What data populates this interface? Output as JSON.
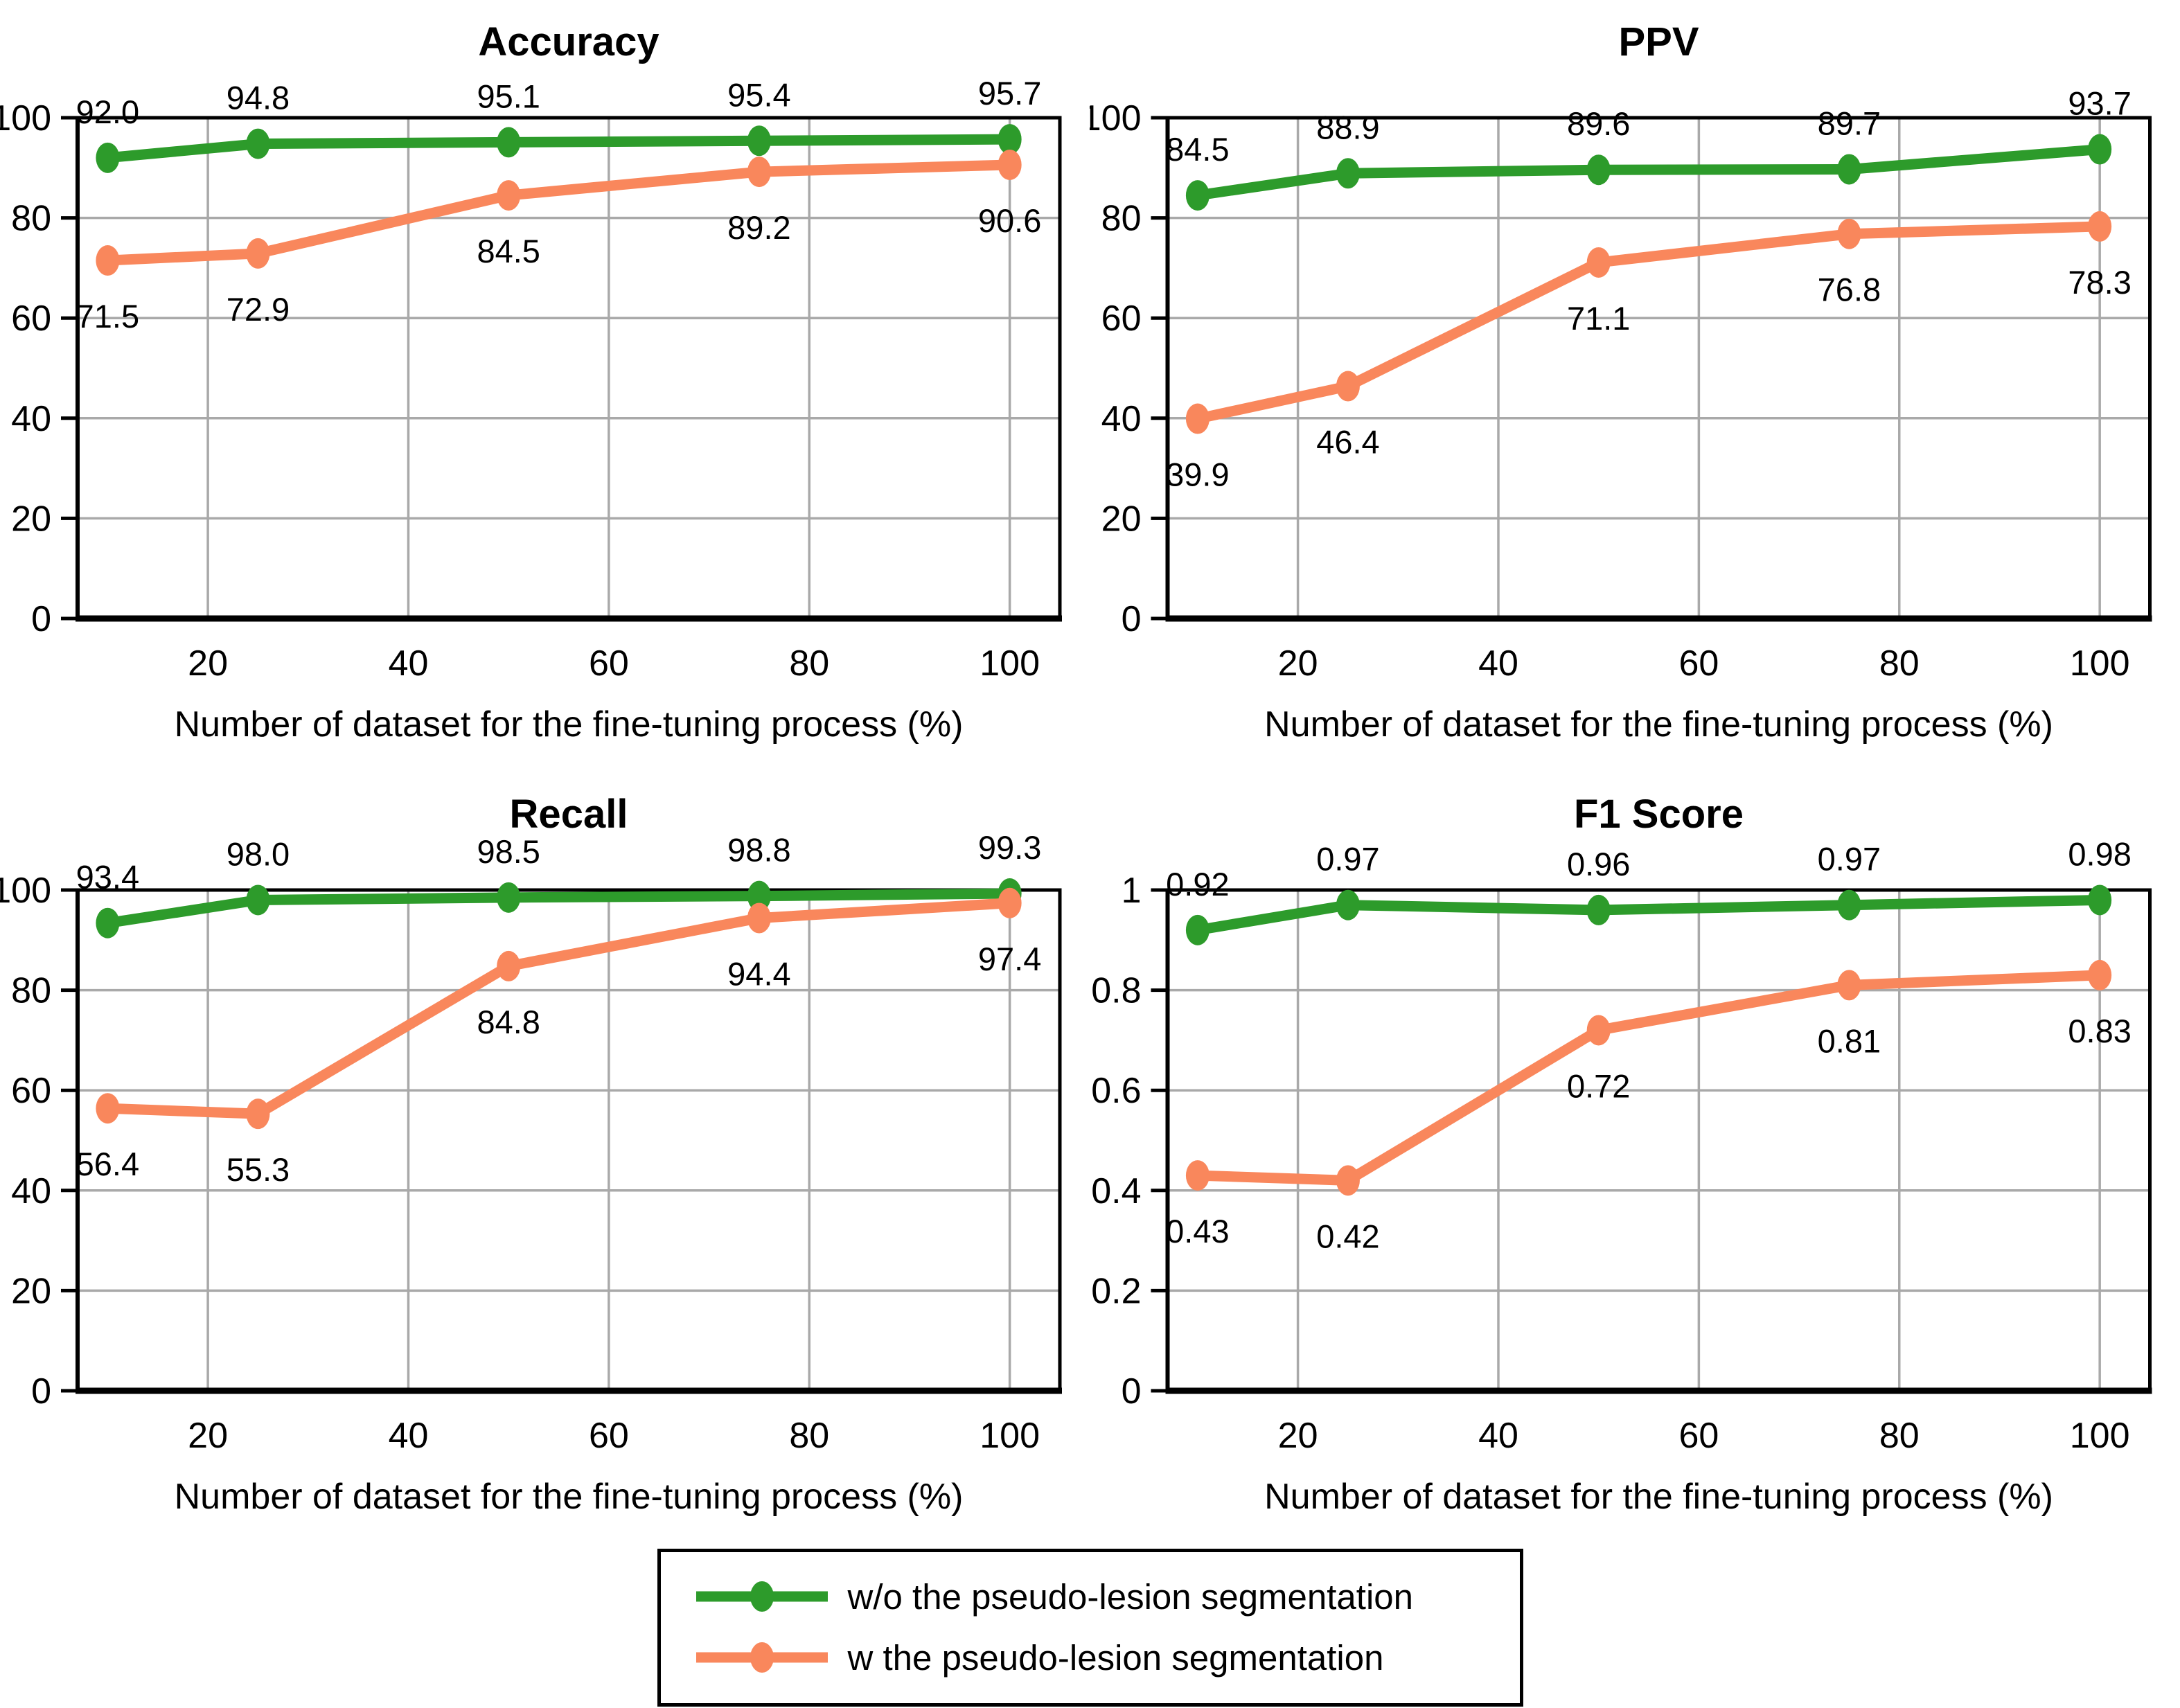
{
  "colors": {
    "green": "#2D9B2B",
    "orange": "#F9875C",
    "grid": "#A9A9A9",
    "axis": "#000000",
    "background": "#FFFFFF"
  },
  "xlabel": "Number of dataset for the fine-tuning process (%)",
  "legend": {
    "items": [
      {
        "label": "w/o the pseudo-lesion segmentation",
        "color_key": "green"
      },
      {
        "label": "w the pseudo-lesion segmentation",
        "color_key": "orange"
      }
    ]
  },
  "chart_data": [
    {
      "type": "line",
      "title": "Accuracy",
      "xlabel": "Number of dataset for the fine-tuning process (%)",
      "x": [
        10,
        25,
        50,
        75,
        100
      ],
      "xlim": [
        7,
        105
      ],
      "xticks": [
        20,
        40,
        60,
        80,
        100
      ],
      "xtick_labels": [
        "20",
        "40",
        "60",
        "80",
        "100"
      ],
      "ylim": [
        0,
        100
      ],
      "yticks": [
        0,
        20,
        40,
        60,
        80,
        100
      ],
      "ytick_labels": [
        "0",
        "20",
        "40",
        "60",
        "80",
        "100"
      ],
      "grid": true,
      "legend_position": "none",
      "series": [
        {
          "name": "w/o the pseudo-lesion segmentation",
          "color_key": "green",
          "values": [
            92.0,
            94.8,
            95.1,
            95.4,
            95.7
          ],
          "labels": [
            "92.0",
            "94.8",
            "95.1",
            "95.4",
            "95.7"
          ],
          "label_side": "above"
        },
        {
          "name": "w the pseudo-lesion segmentation",
          "color_key": "orange",
          "values": [
            71.5,
            72.9,
            84.5,
            89.2,
            90.6
          ],
          "labels": [
            "71.5",
            "72.9",
            "84.5",
            "89.2",
            "90.6"
          ],
          "label_side": "below"
        }
      ]
    },
    {
      "type": "line",
      "title": "PPV",
      "xlabel": "Number of dataset for the fine-tuning process (%)",
      "x": [
        10,
        25,
        50,
        75,
        100
      ],
      "xlim": [
        7,
        105
      ],
      "xticks": [
        20,
        40,
        60,
        80,
        100
      ],
      "xtick_labels": [
        "20",
        "40",
        "60",
        "80",
        "100"
      ],
      "ylim": [
        0,
        100
      ],
      "yticks": [
        0,
        20,
        40,
        60,
        80,
        100
      ],
      "ytick_labels": [
        "0",
        "20",
        "40",
        "60",
        "80",
        "100"
      ],
      "grid": true,
      "legend_position": "none",
      "series": [
        {
          "name": "w/o the pseudo-lesion segmentation",
          "color_key": "green",
          "values": [
            84.5,
            88.9,
            89.6,
            89.7,
            93.7
          ],
          "labels": [
            "84.5",
            "88.9",
            "89.6",
            "89.7",
            "93.7"
          ],
          "label_side": "above"
        },
        {
          "name": "w the pseudo-lesion segmentation",
          "color_key": "orange",
          "values": [
            39.9,
            46.4,
            71.1,
            76.8,
            78.3
          ],
          "labels": [
            "39.9",
            "46.4",
            "71.1",
            "76.8",
            "78.3"
          ],
          "label_side": "below"
        }
      ]
    },
    {
      "type": "line",
      "title": "Recall",
      "xlabel": "Number of dataset for the fine-tuning process (%)",
      "x": [
        10,
        25,
        50,
        75,
        100
      ],
      "xlim": [
        7,
        105
      ],
      "xticks": [
        20,
        40,
        60,
        80,
        100
      ],
      "xtick_labels": [
        "20",
        "40",
        "60",
        "80",
        "100"
      ],
      "ylim": [
        0,
        100
      ],
      "yticks": [
        0,
        20,
        40,
        60,
        80,
        100
      ],
      "ytick_labels": [
        "0",
        "20",
        "40",
        "60",
        "80",
        "100"
      ],
      "grid": true,
      "legend_position": "none",
      "series": [
        {
          "name": "w/o the pseudo-lesion segmentation",
          "color_key": "green",
          "values": [
            93.4,
            98.0,
            98.5,
            98.8,
            99.3
          ],
          "labels": [
            "93.4",
            "98.0",
            "98.5",
            "98.8",
            "99.3"
          ],
          "label_side": "above"
        },
        {
          "name": "w the pseudo-lesion segmentation",
          "color_key": "orange",
          "values": [
            56.4,
            55.3,
            84.8,
            94.4,
            97.4
          ],
          "labels": [
            "56.4",
            "55.3",
            "84.8",
            "94.4",
            "97.4"
          ],
          "label_side": "below"
        }
      ]
    },
    {
      "type": "line",
      "title": "F1 Score",
      "xlabel": "Number of dataset for the fine-tuning process (%)",
      "x": [
        10,
        25,
        50,
        75,
        100
      ],
      "xlim": [
        7,
        105
      ],
      "xticks": [
        20,
        40,
        60,
        80,
        100
      ],
      "xtick_labels": [
        "20",
        "40",
        "60",
        "80",
        "100"
      ],
      "ylim": [
        0,
        1
      ],
      "yticks": [
        0,
        0.2,
        0.4,
        0.6,
        0.8,
        1
      ],
      "ytick_labels": [
        "0",
        "0.2",
        "0.4",
        "0.6",
        "0.8",
        "1"
      ],
      "grid": true,
      "legend_position": "none",
      "series": [
        {
          "name": "w/o the pseudo-lesion segmentation",
          "color_key": "green",
          "values": [
            0.92,
            0.97,
            0.96,
            0.97,
            0.98
          ],
          "labels": [
            "0.92",
            "0.97",
            "0.96",
            "0.97",
            "0.98"
          ],
          "label_side": "above"
        },
        {
          "name": "w the pseudo-lesion segmentation",
          "color_key": "orange",
          "values": [
            0.43,
            0.42,
            0.72,
            0.81,
            0.83
          ],
          "labels": [
            "0.43",
            "0.42",
            "0.72",
            "0.81",
            "0.83"
          ],
          "label_side": "below"
        }
      ]
    }
  ]
}
